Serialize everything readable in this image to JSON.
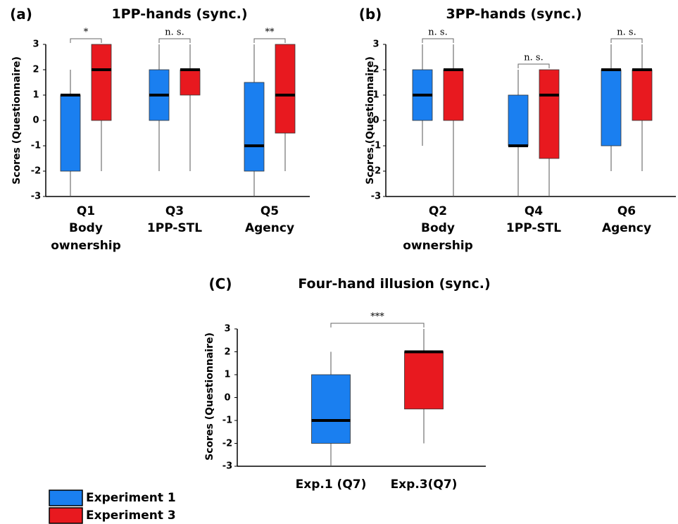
{
  "chart_data": [
    {
      "type": "box",
      "panel_label": "(a)",
      "title": "1PP-hands (sync.)",
      "y_label": "Scores (Questionnaire)",
      "categories": [
        "Q1",
        "Q3",
        "Q5"
      ],
      "category_labels": [
        "Body ownership",
        "1PP-STL",
        "Agency"
      ],
      "ylim": [
        -3,
        3
      ],
      "yticks": [
        3,
        2,
        1,
        0,
        -1,
        -2,
        -3
      ],
      "series": [
        {
          "name": "Experiment 1",
          "color": "#1a7ff0",
          "values": [
            {
              "min": -3,
              "q1": -2,
              "median": 1,
              "q3": 1,
              "max": 2
            },
            {
              "min": -2,
              "q1": 0,
              "median": 1,
              "q3": 2,
              "max": 3
            },
            {
              "min": -3,
              "q1": -2,
              "median": -1,
              "q3": 1.5,
              "max": 3
            }
          ]
        },
        {
          "name": "Experiment 3",
          "color": "#e8191f",
          "values": [
            {
              "min": -2,
              "q1": 0,
              "median": 2,
              "q3": 3,
              "max": 3
            },
            {
              "min": -2,
              "q1": 1,
              "median": 2,
              "q3": 2,
              "max": 3
            },
            {
              "min": -2,
              "q1": -0.5,
              "median": 1,
              "q3": 3,
              "max": 3
            }
          ]
        }
      ],
      "significance": [
        "*",
        "n. s.",
        "**"
      ]
    },
    {
      "type": "box",
      "panel_label": "(b)",
      "title": "3PP-hands (sync.)",
      "y_label": "Scores (Questionnaire)",
      "categories": [
        "Q2",
        "Q4",
        "Q6"
      ],
      "category_labels": [
        "Body ownership",
        "1PP-STL",
        "Agency"
      ],
      "ylim": [
        -3,
        3
      ],
      "yticks": [
        3,
        2,
        1,
        0,
        -1,
        -2,
        -3
      ],
      "series": [
        {
          "name": "Experiment 1",
          "color": "#1a7ff0",
          "values": [
            {
              "min": -1,
              "q1": 0,
              "median": 1,
              "q3": 2,
              "max": 3
            },
            {
              "min": -3,
              "q1": -1,
              "median": -1,
              "q3": 1,
              "max": 2
            },
            {
              "min": -2,
              "q1": -1,
              "median": 2,
              "q3": 2,
              "max": 3
            }
          ]
        },
        {
          "name": "Experiment 3",
          "color": "#e8191f",
          "values": [
            {
              "min": -3,
              "q1": 0,
              "median": 2,
              "q3": 2,
              "max": 3
            },
            {
              "min": -3,
              "q1": -1.5,
              "median": 1,
              "q3": 2,
              "max": 2
            },
            {
              "min": -2,
              "q1": 0,
              "median": 2,
              "q3": 2,
              "max": 3
            }
          ]
        }
      ],
      "significance": [
        "n. s.",
        "n. s.",
        "n. s."
      ]
    },
    {
      "type": "box",
      "panel_label": "(C)",
      "title": "Four-hand illusion (sync.)",
      "y_label": "Scores (Questionnaire)",
      "categories": [
        "Exp.1 (Q7)",
        "Exp.3(Q7)"
      ],
      "ylim": [
        -3,
        3
      ],
      "yticks": [
        3,
        2,
        1,
        0,
        -1,
        -2,
        -3
      ],
      "series": [
        {
          "name": "Experiment 1",
          "color": "#1a7ff0",
          "values": [
            {
              "min": -3,
              "q1": -2,
              "median": -1,
              "q3": 1,
              "max": 2
            },
            null
          ]
        },
        {
          "name": "Experiment 3",
          "color": "#e8191f",
          "values": [
            null,
            {
              "min": -2,
              "q1": -0.5,
              "median": 2,
              "q3": 2,
              "max": 3
            }
          ]
        }
      ],
      "significance": [
        "***"
      ]
    }
  ]
}
